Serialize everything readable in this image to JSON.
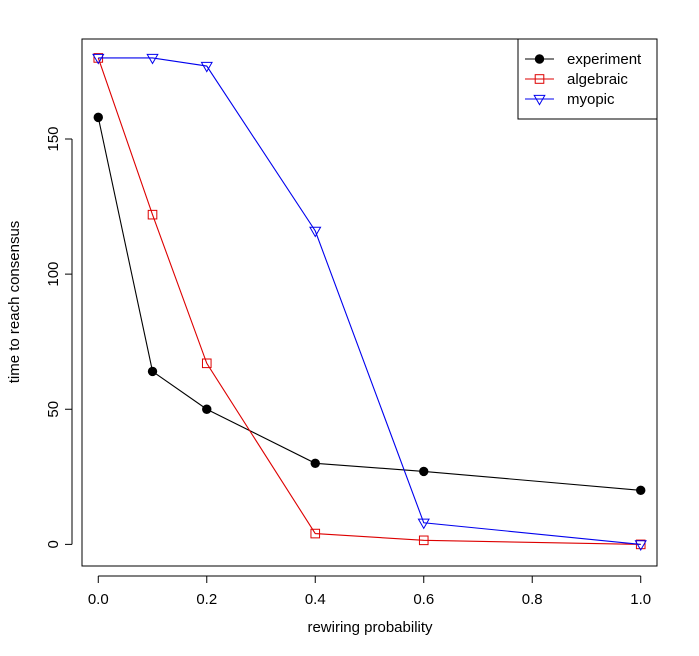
{
  "chart_data": {
    "type": "line",
    "title": "",
    "xlabel": "rewiring probability",
    "ylabel": "time to reach consensus",
    "xlim": [
      -0.03,
      1.03
    ],
    "ylim": [
      -8,
      187
    ],
    "xticks": [
      0.0,
      0.2,
      0.4,
      0.6,
      0.8,
      1.0
    ],
    "xtick_labels": [
      "0.0",
      "0.2",
      "0.4",
      "0.6",
      "0.8",
      "1.0"
    ],
    "yticks": [
      0,
      50,
      100,
      150
    ],
    "ytick_labels": [
      "0",
      "50",
      "100",
      "150"
    ],
    "grid": false,
    "legend_position": "top-right",
    "series": [
      {
        "name": "experiment",
        "color": "#000000",
        "marker": "filled-circle",
        "x": [
          0.0,
          0.1,
          0.2,
          0.4,
          0.6,
          1.0
        ],
        "y": [
          158,
          64,
          50,
          30,
          27,
          20
        ]
      },
      {
        "name": "algebraic",
        "color": "#dd0000",
        "marker": "open-square",
        "x": [
          0.0,
          0.1,
          0.2,
          0.4,
          0.6,
          1.0
        ],
        "y": [
          180,
          122,
          67,
          4,
          1.5,
          0
        ]
      },
      {
        "name": "myopic",
        "color": "#0000ee",
        "marker": "open-triangle-down",
        "x": [
          0.0,
          0.1,
          0.2,
          0.4,
          0.6,
          1.0
        ],
        "y": [
          180,
          180,
          177,
          116,
          8,
          0
        ]
      }
    ]
  }
}
